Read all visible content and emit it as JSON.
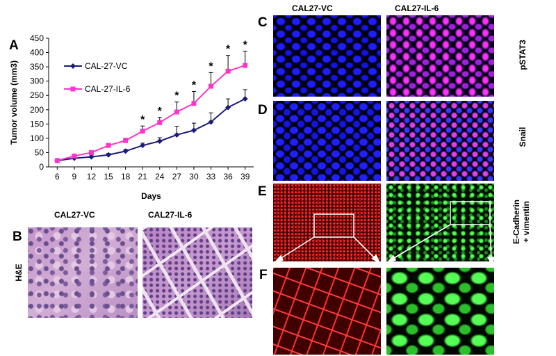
{
  "panels": {
    "A": "A",
    "B": "B",
    "C": "C",
    "D": "D",
    "E": "E",
    "F": "F"
  },
  "headers": {
    "b_left": "CAL27-VC",
    "b_right": "CAL27-IL-6",
    "cf_left": "CAL27-VC",
    "cf_right": "CAL27-IL-6"
  },
  "side_labels": {
    "he": "H&E",
    "pstat3": "pSTAT3",
    "snail": "Snail",
    "ecad_line1": "E-Cadherin",
    "ecad_line2": "+ vimentin"
  },
  "colors": {
    "vc": "#1b1b7a",
    "il6": "#ff33cc",
    "he_bg": "#c99ccf",
    "dapi": "#0a0ad0",
    "pink_nuclei": "#e040e0",
    "ecad": "#e02020",
    "vimentin": "#33dd33"
  },
  "chart_data": {
    "type": "line",
    "xlabel": "Days",
    "ylabel": "Tumor volume (mm3)",
    "x": [
      6,
      9,
      12,
      15,
      18,
      21,
      24,
      27,
      30,
      33,
      36,
      39
    ],
    "ylim": [
      0,
      450
    ],
    "yticks": [
      0,
      50,
      100,
      150,
      200,
      250,
      300,
      350,
      400,
      450
    ],
    "legend_position": "top-left",
    "series": [
      {
        "name": "CAL-27-VC",
        "marker": "diamond",
        "values": [
          22,
          30,
          35,
          42,
          55,
          75,
          90,
          112,
          128,
          157,
          208,
          238
        ],
        "error": [
          3,
          4,
          4,
          5,
          6,
          8,
          12,
          30,
          25,
          32,
          30,
          32
        ]
      },
      {
        "name": "CAL-27-IL-6",
        "marker": "square",
        "values": [
          22,
          38,
          50,
          75,
          92,
          125,
          155,
          192,
          222,
          282,
          335,
          355
        ],
        "error": [
          3,
          5,
          5,
          6,
          8,
          18,
          18,
          35,
          42,
          48,
          55,
          50
        ]
      }
    ],
    "significance": {
      "symbol": "*",
      "days": [
        21,
        24,
        27,
        30,
        33,
        36,
        39
      ]
    }
  }
}
